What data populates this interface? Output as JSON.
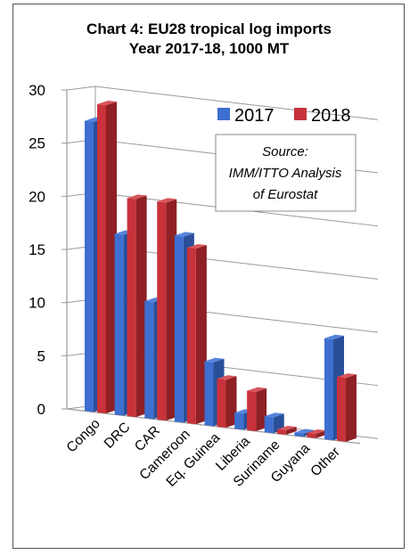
{
  "title_line1": "Chart 4: EU28 tropical log imports",
  "title_line2": "Year 2017-18, 1000 MT",
  "source_box": {
    "line1": "Source:",
    "line2": "IMM/ITTO Analysis",
    "line3": "of Eurostat"
  },
  "colors": {
    "s2017_front": "#3d6fd0",
    "s2017_side": "#2a4f99",
    "s2017_top": "#5584dc",
    "s2018_front": "#c8323a",
    "s2018_side": "#8e2026",
    "s2018_top": "#d8555a",
    "grid": "#9a9a9a",
    "frame": "#555555"
  },
  "chart_data": {
    "type": "bar",
    "title": "Chart 4: EU28 tropical log imports Year 2017-18, 1000 MT",
    "categories": [
      "Congo",
      "DRC",
      "CAR",
      "Cameroon",
      "Eq. Guinea",
      "Liberia",
      "Suriname",
      "Guyana",
      "Other"
    ],
    "series": [
      {
        "name": "2017",
        "values": [
          27.3,
          17.0,
          11.0,
          17.5,
          6.0,
          1.5,
          1.5,
          0.3,
          9.5
        ]
      },
      {
        "name": "2018",
        "values": [
          29.0,
          20.5,
          20.5,
          16.5,
          4.5,
          3.7,
          0.4,
          0.4,
          6.0
        ]
      }
    ],
    "ylim": [
      0,
      30
    ],
    "yticks": [
      0,
      5,
      10,
      15,
      20,
      25,
      30
    ],
    "grid": true,
    "legend": "top-right",
    "style": "3d-clustered"
  }
}
